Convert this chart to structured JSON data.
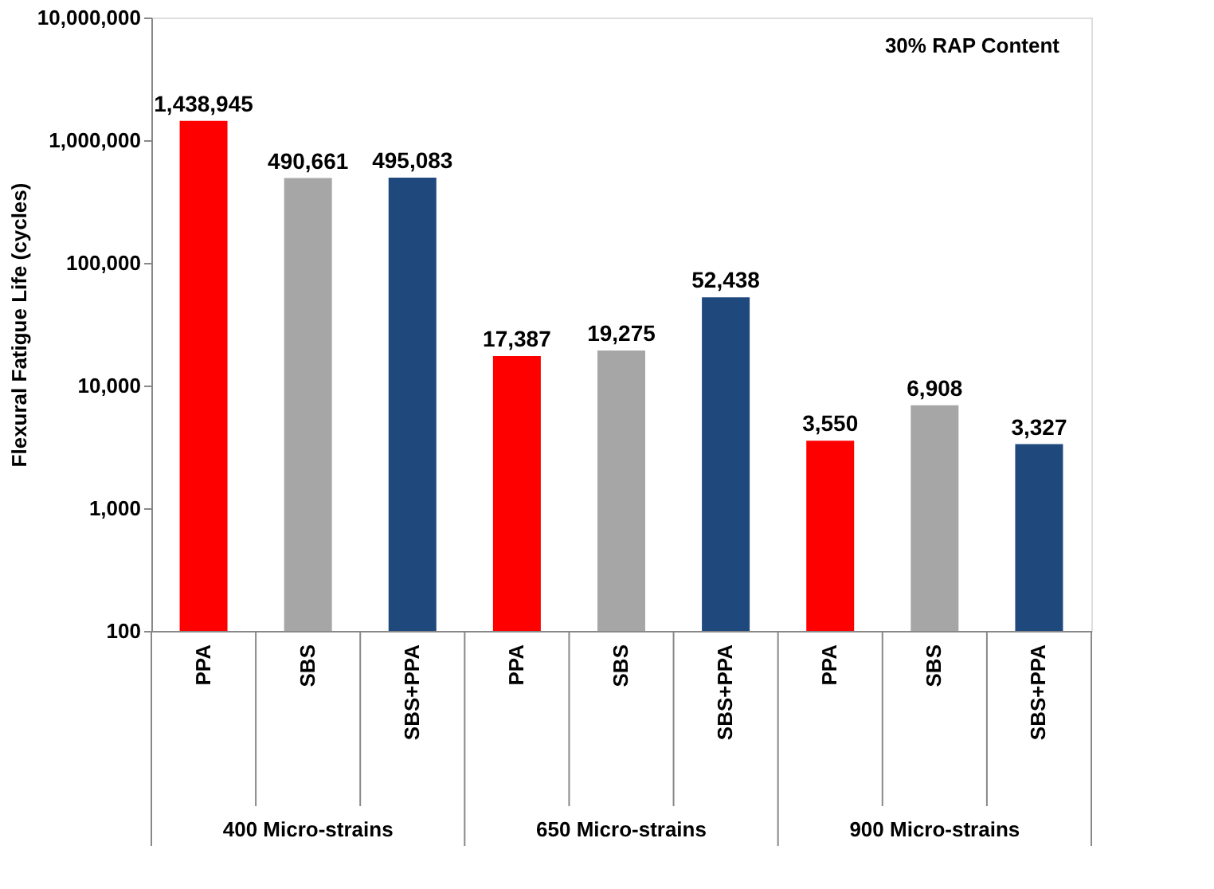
{
  "chart_data": {
    "type": "bar",
    "ylabel": "Flexural Fatigue Life (cycles)",
    "categories": [
      "PPA",
      "SBS",
      "SBS+PPA",
      "PPA",
      "SBS",
      "SBS+PPA",
      "PPA",
      "SBS",
      "SBS+PPA"
    ],
    "values": [
      1438945,
      490661,
      495083,
      17387,
      19275,
      52438,
      3550,
      6908,
      3327
    ],
    "value_labels": [
      "1,438,945",
      "490,661",
      "495,083",
      "17,387",
      "19,275",
      "52,438",
      "3,550",
      "6,908",
      "3,327"
    ],
    "colors": [
      "#ff0000",
      "#a6a6a6",
      "#1f497d",
      "#ff0000",
      "#a6a6a6",
      "#1f497d",
      "#ff0000",
      "#a6a6a6",
      "#1f497d"
    ],
    "log": true,
    "ylim": [
      100,
      10000000
    ],
    "yticks": [
      100,
      {
        "value": 1000,
        "label": "1,000"
      },
      {
        "value": 10000,
        "label": "10,000"
      },
      {
        "value": 100000,
        "label": "100,000"
      },
      {
        "value": 1000000,
        "label": "1,000,000"
      },
      {
        "value": 10000000,
        "label": "10,000,000"
      }
    ],
    "grid": false,
    "annotations": [
      "30% RAP Content",
      "400 Micro-strains",
      "650 Micro-strains",
      "900 Micro-strains"
    ]
  }
}
